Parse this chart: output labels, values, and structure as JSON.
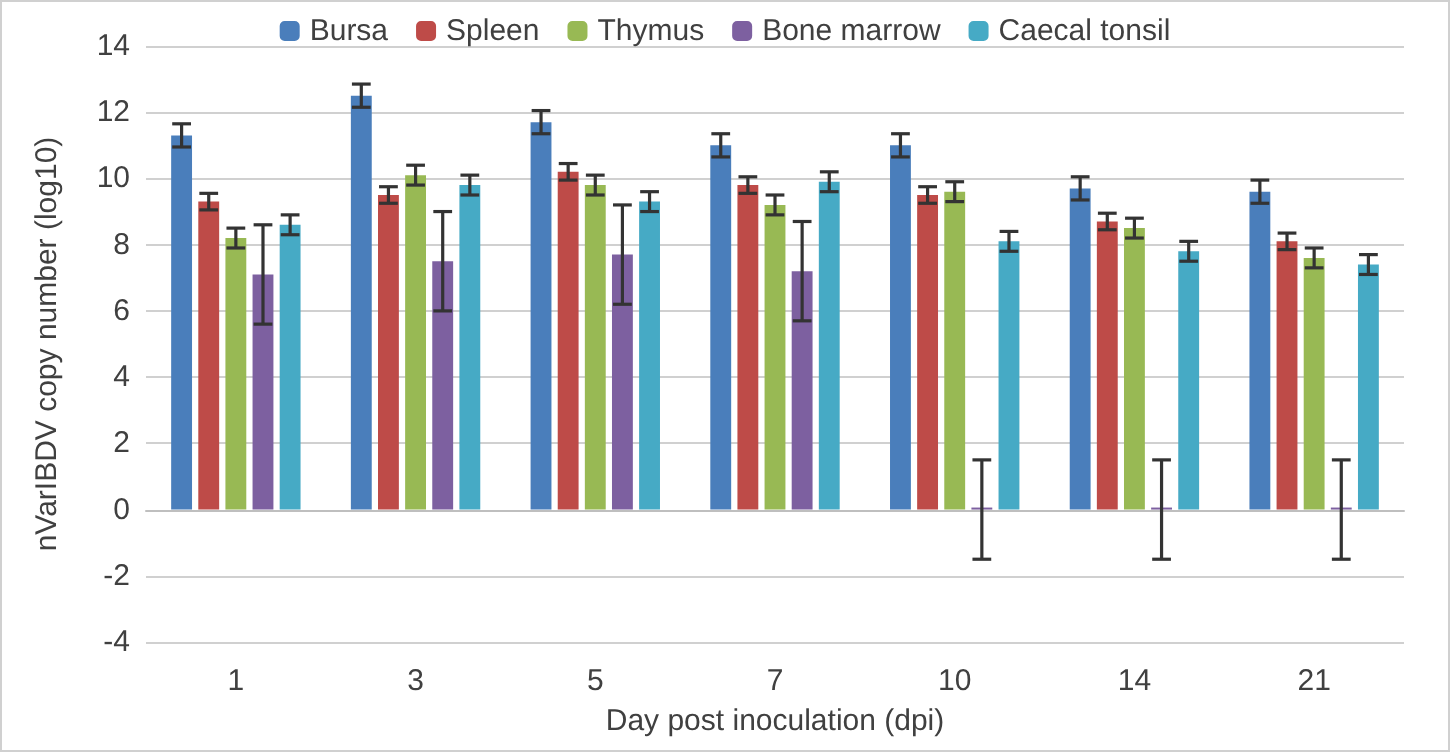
{
  "chart_data": {
    "type": "bar",
    "xlabel": "Day post inoculation (dpi)",
    "ylabel": "nVarIBDV copy number (log10)",
    "categories": [
      "1",
      "3",
      "5",
      "7",
      "10",
      "14",
      "21"
    ],
    "series": [
      {
        "name": "Bursa",
        "color": "#4a7ebb",
        "values": [
          11.3,
          12.5,
          11.7,
          11.0,
          11.0,
          9.7,
          9.6
        ],
        "errors": [
          0.35,
          0.35,
          0.35,
          0.35,
          0.35,
          0.35,
          0.35
        ]
      },
      {
        "name": "Spleen",
        "color": "#be4b48",
        "values": [
          9.3,
          9.5,
          10.2,
          9.8,
          9.5,
          8.7,
          8.1
        ],
        "errors": [
          0.25,
          0.25,
          0.25,
          0.25,
          0.25,
          0.25,
          0.25
        ]
      },
      {
        "name": "Thymus",
        "color": "#98b954",
        "values": [
          8.2,
          10.1,
          9.8,
          9.2,
          9.6,
          8.5,
          7.6
        ],
        "errors": [
          0.3,
          0.3,
          0.3,
          0.3,
          0.3,
          0.3,
          0.3
        ]
      },
      {
        "name": "Bone marrow",
        "color": "#7d60a0",
        "values": [
          7.1,
          7.5,
          7.7,
          7.2,
          0,
          0,
          0
        ],
        "errors": [
          1.5,
          1.5,
          1.5,
          1.5,
          1.5,
          1.5,
          1.5
        ]
      },
      {
        "name": "Caecal tonsil",
        "color": "#46aac5",
        "values": [
          8.6,
          9.8,
          9.3,
          9.9,
          8.1,
          7.8,
          7.4
        ],
        "errors": [
          0.3,
          0.3,
          0.3,
          0.3,
          0.3,
          0.3,
          0.3
        ]
      }
    ],
    "ylim": [
      -4,
      14
    ],
    "yticks": [
      -4,
      -2,
      0,
      2,
      4,
      6,
      8,
      10,
      12,
      14
    ],
    "grid": "y",
    "legend": "top"
  }
}
